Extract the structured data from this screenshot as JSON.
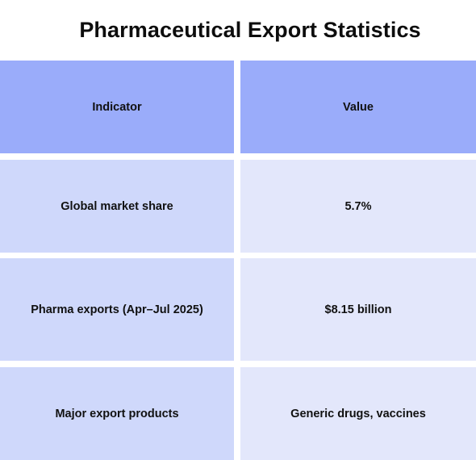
{
  "title": "Pharmaceutical Export Statistics",
  "table": {
    "headers": [
      "Indicator",
      "Value"
    ],
    "rows": [
      [
        "Global market share",
        "5.7%"
      ],
      [
        "Pharma exports (Apr–Jul 2025)",
        "$8.15 billion"
      ],
      [
        "Major export products",
        "Generic drugs, vaccines"
      ]
    ]
  },
  "colors": {
    "header_bg": "#9aacfa",
    "indicator_bg": "#cfd8fb",
    "value_bg": "#e3e7fb"
  }
}
